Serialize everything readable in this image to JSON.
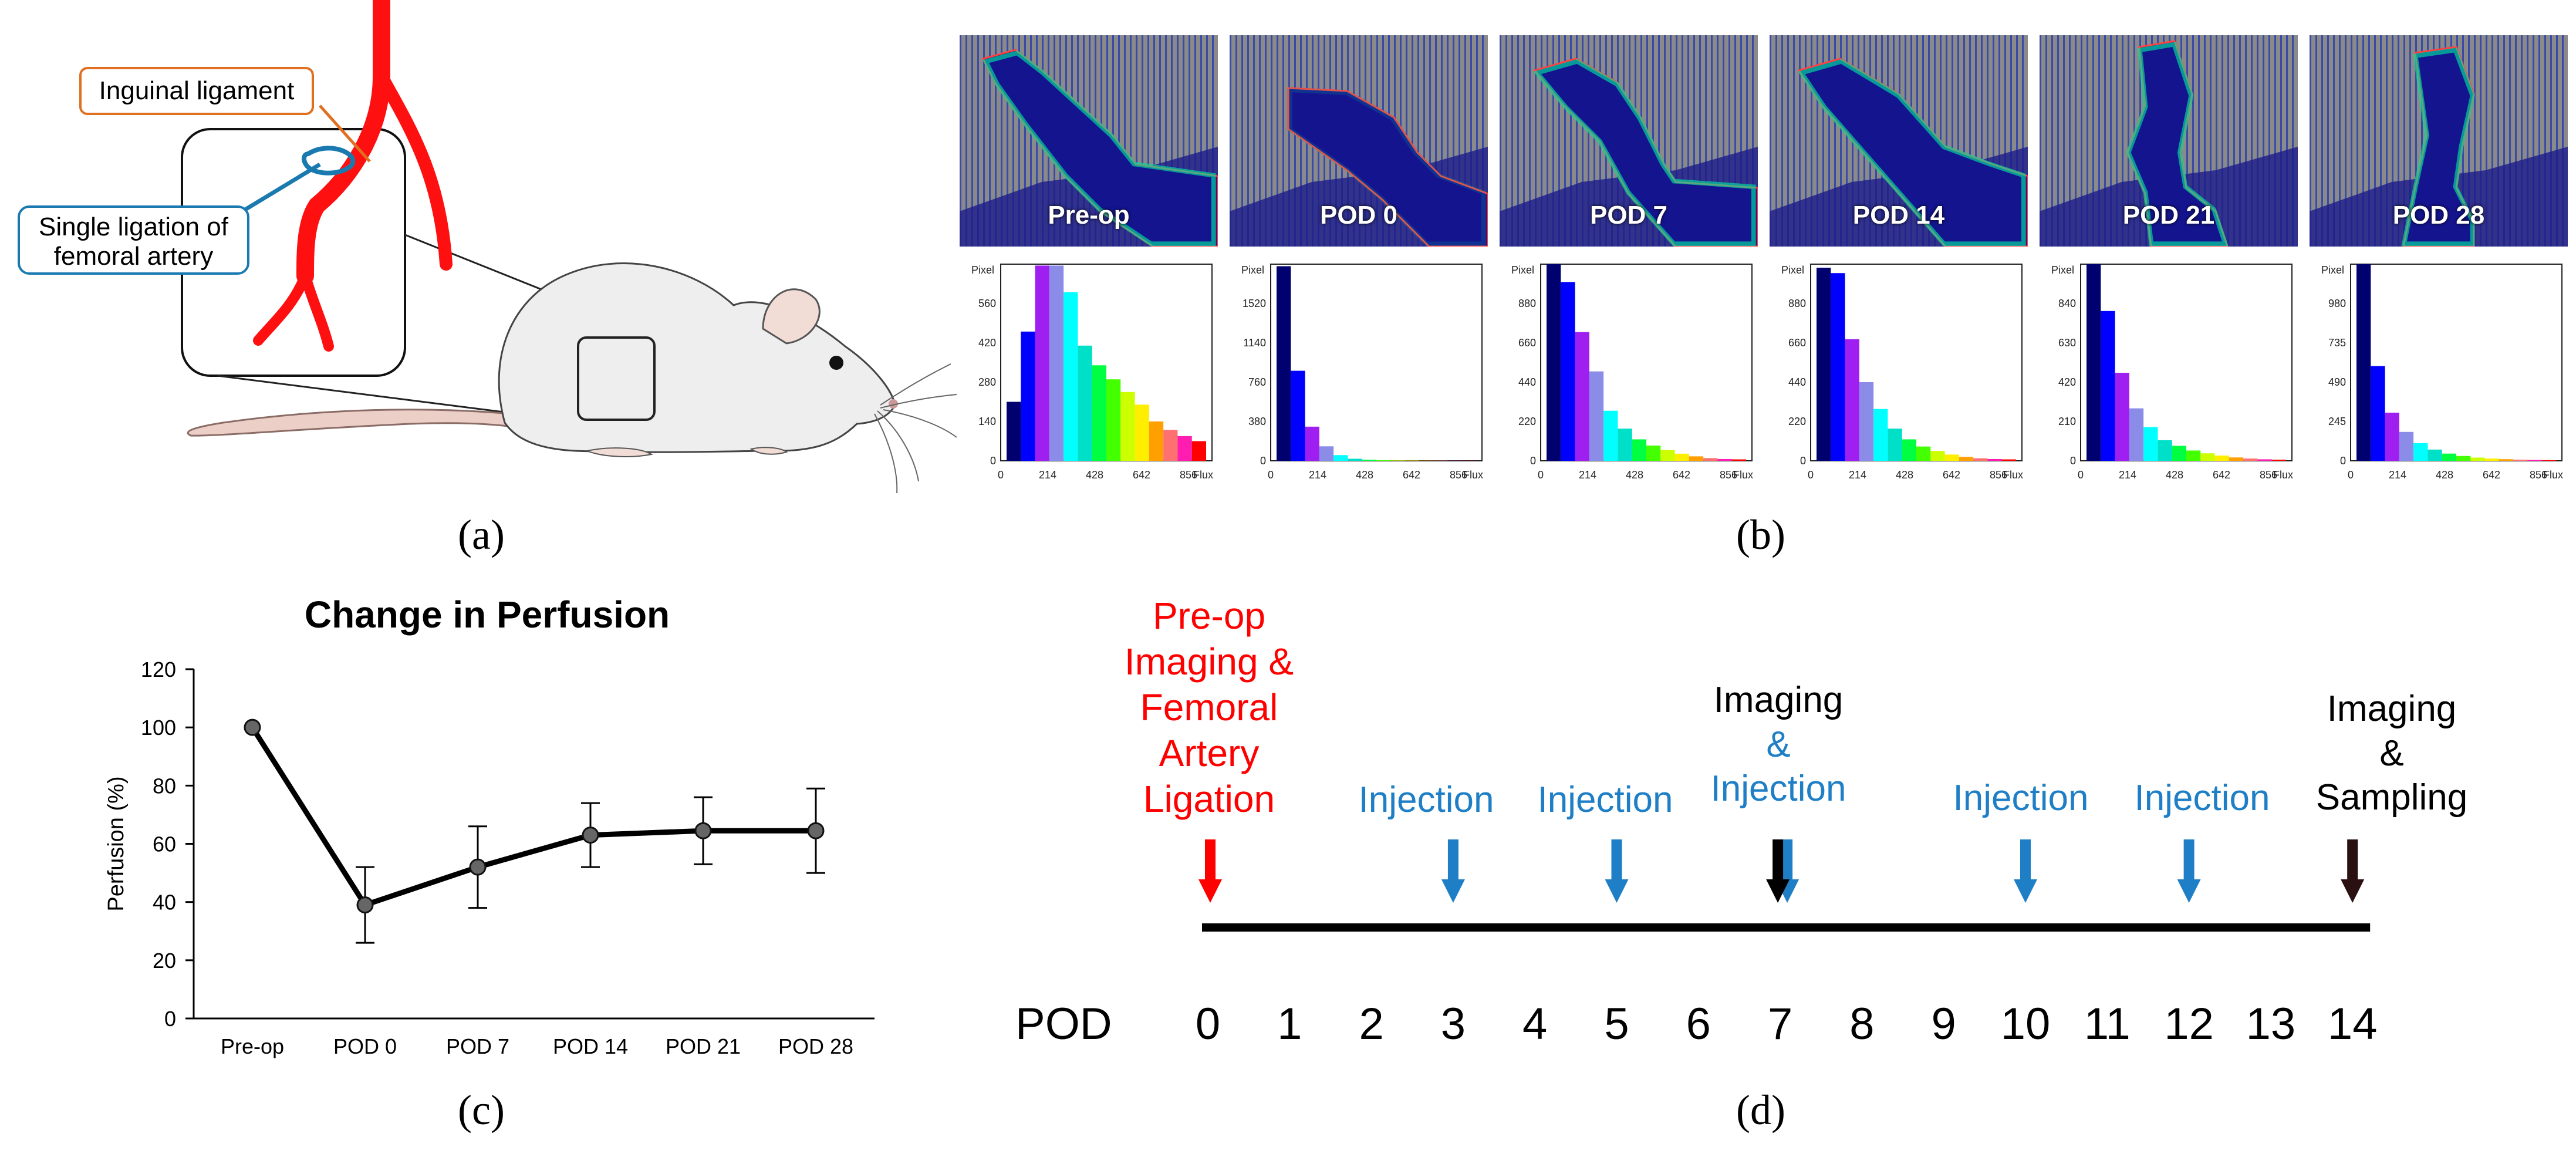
{
  "panel_labels": {
    "a": "(a)",
    "b": "(b)",
    "c": "(c)",
    "d": "(d)"
  },
  "panel_a": {
    "callout_ligament": "Inguinal ligament",
    "callout_ligation_line1": "Single ligation of",
    "callout_ligation_line2": "femoral artery",
    "colors": {
      "artery": "#ff1010",
      "ligament_box": "#e07020",
      "ligation_box": "#1a7ab0"
    }
  },
  "panel_b": {
    "histogram_axis": {
      "ylabel": "Pixel",
      "xlabel": "Flux",
      "x_ticks": [
        "0",
        "214",
        "428",
        "642",
        "856"
      ]
    },
    "bar_colors": [
      "#00006e",
      "#0000ff",
      "#9f1ff0",
      "#8b8be8",
      "#00ffff",
      "#00e0c8",
      "#00ff40",
      "#44ff00",
      "#ccff00",
      "#ffee00",
      "#ffa000",
      "#ff7070",
      "#ff1cb0",
      "#ff0000"
    ],
    "scans": [
      {
        "label": "Pre-op",
        "y_ticks": [
          "0",
          "140",
          "280",
          "420",
          "560"
        ],
        "ymax": 700,
        "values": [
          210,
          460,
          695,
          695,
          600,
          410,
          340,
          290,
          245,
          200,
          140,
          110,
          88,
          70
        ]
      },
      {
        "label": "POD 0",
        "y_ticks": [
          "0",
          "380",
          "760",
          "1140",
          "1520"
        ],
        "ymax": 1900,
        "values": [
          1880,
          870,
          330,
          140,
          55,
          20,
          10,
          6,
          4,
          3,
          2,
          2,
          1,
          1
        ]
      },
      {
        "label": "POD 7",
        "y_ticks": [
          "0",
          "220",
          "440",
          "660",
          "880"
        ],
        "ymax": 1100,
        "values": [
          1100,
          1000,
          720,
          500,
          280,
          180,
          120,
          85,
          60,
          40,
          25,
          15,
          10,
          8
        ]
      },
      {
        "label": "POD 14",
        "y_ticks": [
          "0",
          "220",
          "440",
          "660",
          "880"
        ],
        "ymax": 1100,
        "values": [
          1080,
          1050,
          680,
          440,
          290,
          180,
          120,
          80,
          55,
          35,
          22,
          14,
          10,
          8
        ]
      },
      {
        "label": "POD 21",
        "y_ticks": [
          "0",
          "210",
          "420",
          "630",
          "840"
        ],
        "ymax": 1050,
        "values": [
          1050,
          800,
          470,
          280,
          180,
          110,
          80,
          55,
          40,
          28,
          18,
          12,
          8,
          6
        ]
      },
      {
        "label": "POD 28",
        "y_ticks": [
          "0",
          "245",
          "490",
          "735",
          "980"
        ],
        "ymax": 1225,
        "values": [
          1225,
          590,
          300,
          180,
          110,
          70,
          45,
          30,
          20,
          14,
          10,
          7,
          5,
          4
        ]
      }
    ]
  },
  "chart_data": {
    "type": "line",
    "title": "Change in Perfusion",
    "ylabel": "Perfusion (%)",
    "xlabel": "",
    "categories": [
      "Pre-op",
      "POD 0",
      "POD 7",
      "POD 14",
      "POD 21",
      "POD 28"
    ],
    "values": [
      100,
      39,
      52,
      63,
      64.5,
      64.5
    ],
    "error_upper": [
      100,
      52,
      66,
      74,
      76,
      79
    ],
    "error_lower": [
      100,
      26,
      38,
      52,
      53,
      50
    ],
    "ylim": [
      0,
      120
    ],
    "y_ticks": [
      "0",
      "20",
      "40",
      "60",
      "80",
      "100",
      "120"
    ],
    "grid": false
  },
  "panel_d": {
    "pod_label": "POD",
    "days": [
      "0",
      "1",
      "2",
      "3",
      "4",
      "5",
      "6",
      "7",
      "8",
      "9",
      "10",
      "11",
      "12",
      "13",
      "14"
    ],
    "event0": {
      "line1": "Pre-op",
      "line2": "Imaging &",
      "line3": "Femoral",
      "line4": "Artery",
      "line5": "Ligation",
      "color": "#ff0000"
    },
    "injection_label": "Injection",
    "injection_days": [
      3,
      5,
      7,
      10,
      12
    ],
    "event7": {
      "line1": "Imaging",
      "line2": "&",
      "line3": "Injection"
    },
    "event14": {
      "line1": "Imaging",
      "line2": "&",
      "line3": "Sampling"
    },
    "colors": {
      "injection": "#1e7fc6",
      "event_black": "#000000",
      "end_arrow": "#2a1010"
    }
  }
}
